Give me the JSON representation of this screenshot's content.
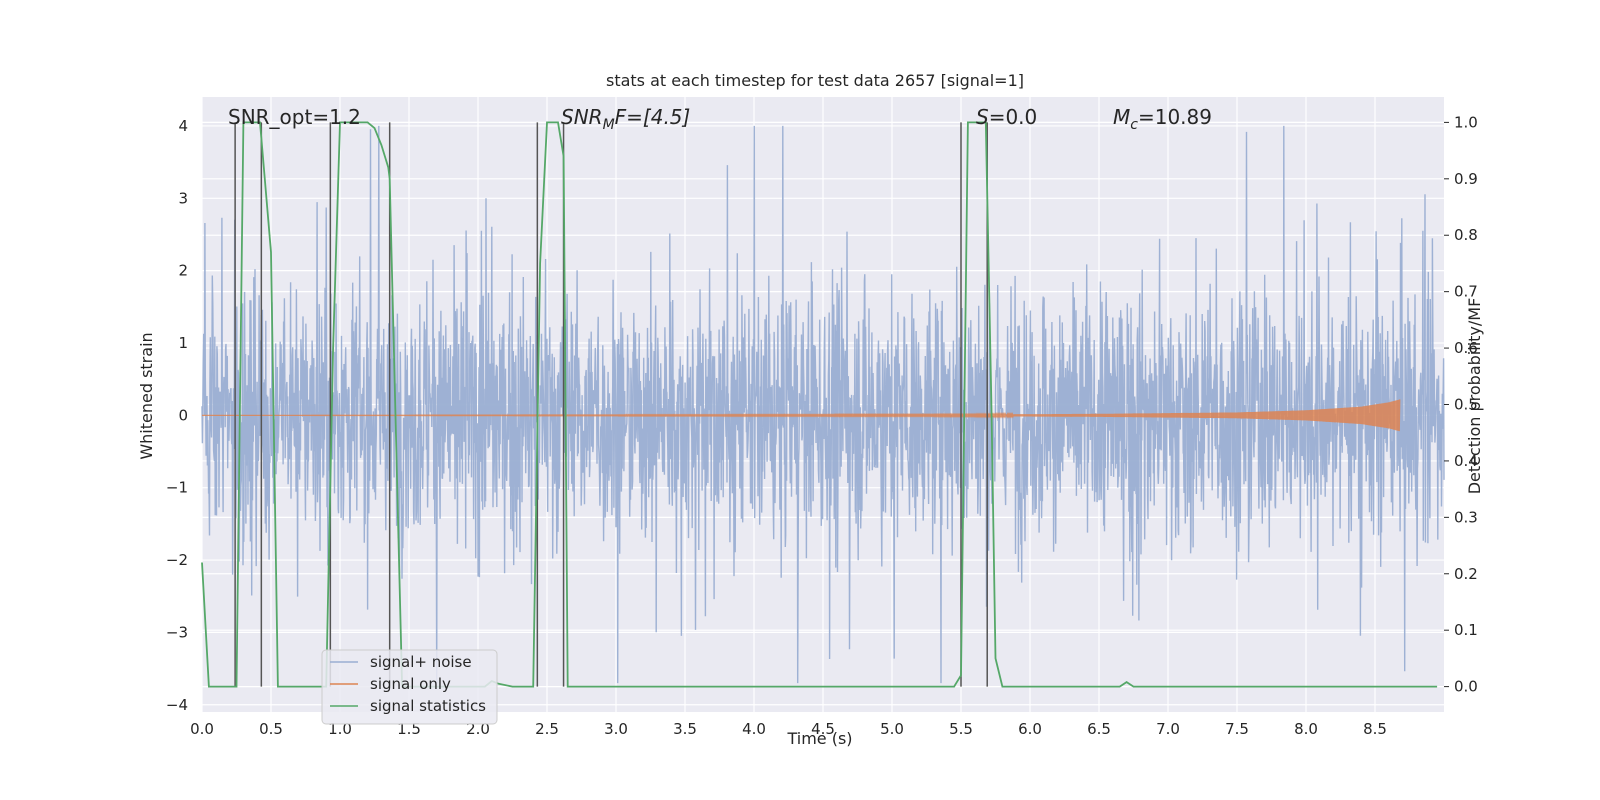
{
  "chart_data": {
    "type": "line",
    "title": "stats at each timestep for test data 2657 [signal=1]",
    "xlabel": "Time (s)",
    "ylabel_left": "Whitened strain",
    "ylabel_right": "Detection probability/MF",
    "xlim": [
      0.0,
      9.0
    ],
    "ylim_left": [
      -4.1,
      4.4
    ],
    "ylim_right": [
      -0.045,
      1.045
    ],
    "xticks": [
      0.0,
      0.5,
      1.0,
      1.5,
      2.0,
      2.5,
      3.0,
      3.5,
      4.0,
      4.5,
      5.0,
      5.5,
      6.0,
      6.5,
      7.0,
      7.5,
      8.0,
      8.5
    ],
    "xtick_labels": [
      "0.0",
      "0.5",
      "1.0",
      "1.5",
      "2.0",
      "2.5",
      "3.0",
      "3.5",
      "4.0",
      "4.5",
      "5.0",
      "5.5",
      "6.0",
      "6.5",
      "7.0",
      "7.5",
      "8.0",
      "8.5"
    ],
    "yticks_left": [
      -4,
      -3,
      -2,
      -1,
      0,
      1,
      2,
      3,
      4
    ],
    "ytick_labels_left": [
      "−4",
      "−3",
      "−2",
      "−1",
      "0",
      "1",
      "2",
      "3",
      "4"
    ],
    "yticks_right": [
      0.0,
      0.1,
      0.2,
      0.3,
      0.4,
      0.5,
      0.6,
      0.7,
      0.8,
      0.9,
      1.0
    ],
    "ytick_labels_right": [
      "0.0",
      "0.1",
      "0.2",
      "0.3",
      "0.4",
      "0.5",
      "0.6",
      "0.7",
      "0.8",
      "0.9",
      "1.0"
    ],
    "grid": true,
    "annotations": {
      "snr_opt": "SNR_opt=1.2",
      "snr_mf_prefix": "SNR",
      "snr_mf_sub": "M",
      "snr_mf_suffix": "F=[4.5]",
      "s_var": "S",
      "s_value": "=0.0",
      "mc_var": "M",
      "mc_sub": "c",
      "mc_value": "=10.89"
    },
    "vertical_markers_x": [
      0.24,
      0.43,
      0.93,
      1.36,
      2.43,
      2.62,
      5.5,
      5.69
    ],
    "series": [
      {
        "name": "signal+ noise",
        "color": "#9aaed2",
        "axis": "left",
        "noise_std": 0.85,
        "noise_peak_range": [
          -3.7,
          4.0
        ]
      },
      {
        "name": "signal only",
        "color": "#dd8452",
        "axis": "left",
        "x": [
          0.0,
          5.5,
          6.5,
          7.5,
          8.0,
          8.4,
          8.6,
          8.68
        ],
        "amplitude": [
          0.0,
          0.01,
          0.02,
          0.04,
          0.07,
          0.12,
          0.18,
          0.22
        ]
      },
      {
        "name": "signal statistics",
        "color": "#55a868",
        "axis": "right",
        "x": [
          0.0,
          0.05,
          0.2,
          0.25,
          0.3,
          0.42,
          0.5,
          0.55,
          0.6,
          0.9,
          0.95,
          1.0,
          1.2,
          1.25,
          1.3,
          1.35,
          1.36,
          1.45,
          2.0,
          2.05,
          2.1,
          2.15,
          2.25,
          2.4,
          2.45,
          2.5,
          2.58,
          2.62,
          2.65,
          2.7,
          2.8,
          2.9,
          3.5,
          5.45,
          5.5,
          5.55,
          5.68,
          5.72,
          5.75,
          5.8,
          5.9,
          6.5,
          6.65,
          6.7,
          6.75,
          6.8,
          8.95
        ],
        "y": [
          0.22,
          0.0,
          0.0,
          0.0,
          1.0,
          1.0,
          0.77,
          0.0,
          0.0,
          0.0,
          0.6,
          1.0,
          1.0,
          0.99,
          0.96,
          0.92,
          0.9,
          0.0,
          0.0,
          0.0,
          0.01,
          0.005,
          0.0,
          0.0,
          0.75,
          1.0,
          1.0,
          0.94,
          0.0,
          0.0,
          0.0,
          0.0,
          0.0,
          0.0,
          0.02,
          1.0,
          1.0,
          0.5,
          0.05,
          0.0,
          0.0,
          0.0,
          0.0,
          0.008,
          0.0,
          0.0,
          0.0
        ]
      }
    ],
    "legend_location": "lower-left"
  }
}
